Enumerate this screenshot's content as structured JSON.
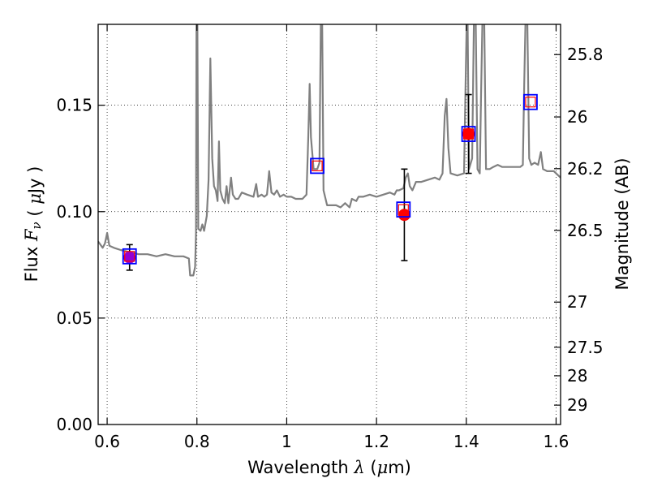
{
  "chart_data": {
    "type": "line",
    "xlabel": "Wavelength  λ (μm)",
    "ylabel": "Flux  Fν ( μJy )",
    "ylabel_right": "Magnitude (AB)",
    "xlim": [
      0.58,
      1.61
    ],
    "ylim": [
      0.0,
      0.188
    ],
    "grid": true,
    "x_ticks": [
      0.6,
      0.8,
      1.0,
      1.2,
      1.4,
      1.6
    ],
    "x_tick_labels": [
      "0.6",
      "0.8",
      "1",
      "1.2",
      "1.4",
      "1.6"
    ],
    "y_ticks": [
      0.0,
      0.05,
      0.1,
      0.15
    ],
    "y_tick_labels": [
      "0.00",
      "0.05",
      "0.10",
      "0.15"
    ],
    "right_ticks": [
      {
        "label": "25.8",
        "flux": 0.1738
      },
      {
        "label": "26",
        "flux": 0.1445
      },
      {
        "label": "26.2",
        "flux": 0.1202
      },
      {
        "label": "26.5",
        "flux": 0.0912
      },
      {
        "label": "27",
        "flux": 0.0575
      },
      {
        "label": "27.5",
        "flux": 0.0363
      },
      {
        "label": "28",
        "flux": 0.0229
      },
      {
        "label": "29",
        "flux": 0.0091
      }
    ],
    "spectrum": {
      "color": "#808080",
      "points": [
        [
          0.58,
          0.086
        ],
        [
          0.59,
          0.083
        ],
        [
          0.595,
          0.085
        ],
        [
          0.6,
          0.09
        ],
        [
          0.605,
          0.084
        ],
        [
          0.615,
          0.083
        ],
        [
          0.63,
          0.082
        ],
        [
          0.65,
          0.081
        ],
        [
          0.67,
          0.08
        ],
        [
          0.69,
          0.08
        ],
        [
          0.71,
          0.079
        ],
        [
          0.73,
          0.08
        ],
        [
          0.75,
          0.079
        ],
        [
          0.77,
          0.079
        ],
        [
          0.782,
          0.078
        ],
        [
          0.785,
          0.07
        ],
        [
          0.792,
          0.07
        ],
        [
          0.796,
          0.074
        ],
        [
          0.798,
          0.09
        ],
        [
          0.799,
          0.19
        ],
        [
          0.801,
          0.19
        ],
        [
          0.803,
          0.092
        ],
        [
          0.808,
          0.091
        ],
        [
          0.812,
          0.094
        ],
        [
          0.816,
          0.091
        ],
        [
          0.822,
          0.098
        ],
        [
          0.826,
          0.115
        ],
        [
          0.83,
          0.172
        ],
        [
          0.834,
          0.125
        ],
        [
          0.838,
          0.112
        ],
        [
          0.842,
          0.11
        ],
        [
          0.846,
          0.105
        ],
        [
          0.849,
          0.133
        ],
        [
          0.852,
          0.11
        ],
        [
          0.857,
          0.106
        ],
        [
          0.862,
          0.104
        ],
        [
          0.866,
          0.112
        ],
        [
          0.87,
          0.104
        ],
        [
          0.876,
          0.116
        ],
        [
          0.88,
          0.108
        ],
        [
          0.886,
          0.106
        ],
        [
          0.892,
          0.106
        ],
        [
          0.9,
          0.109
        ],
        [
          0.912,
          0.108
        ],
        [
          0.926,
          0.107
        ],
        [
          0.932,
          0.113
        ],
        [
          0.936,
          0.107
        ],
        [
          0.944,
          0.108
        ],
        [
          0.95,
          0.107
        ],
        [
          0.956,
          0.108
        ],
        [
          0.961,
          0.119
        ],
        [
          0.966,
          0.109
        ],
        [
          0.972,
          0.108
        ],
        [
          0.978,
          0.11
        ],
        [
          0.985,
          0.107
        ],
        [
          0.993,
          0.108
        ],
        [
          1.0,
          0.107
        ],
        [
          1.01,
          0.107
        ],
        [
          1.02,
          0.106
        ],
        [
          1.035,
          0.106
        ],
        [
          1.044,
          0.108
        ],
        [
          1.048,
          0.135
        ],
        [
          1.051,
          0.16
        ],
        [
          1.054,
          0.135
        ],
        [
          1.06,
          0.12
        ],
        [
          1.068,
          0.12
        ],
        [
          1.073,
          0.123
        ],
        [
          1.076,
          0.19
        ],
        [
          1.079,
          0.19
        ],
        [
          1.082,
          0.11
        ],
        [
          1.09,
          0.103
        ],
        [
          1.1,
          0.103
        ],
        [
          1.11,
          0.103
        ],
        [
          1.12,
          0.102
        ],
        [
          1.13,
          0.104
        ],
        [
          1.14,
          0.102
        ],
        [
          1.145,
          0.106
        ],
        [
          1.155,
          0.105
        ],
        [
          1.16,
          0.107
        ],
        [
          1.17,
          0.107
        ],
        [
          1.185,
          0.108
        ],
        [
          1.2,
          0.107
        ],
        [
          1.215,
          0.108
        ],
        [
          1.23,
          0.109
        ],
        [
          1.24,
          0.108
        ],
        [
          1.245,
          0.11
        ],
        [
          1.25,
          0.11
        ],
        [
          1.26,
          0.111
        ],
        [
          1.265,
          0.116
        ],
        [
          1.27,
          0.118
        ],
        [
          1.274,
          0.112
        ],
        [
          1.28,
          0.11
        ],
        [
          1.288,
          0.114
        ],
        [
          1.3,
          0.114
        ],
        [
          1.315,
          0.115
        ],
        [
          1.33,
          0.116
        ],
        [
          1.34,
          0.115
        ],
        [
          1.347,
          0.118
        ],
        [
          1.352,
          0.145
        ],
        [
          1.356,
          0.153
        ],
        [
          1.36,
          0.13
        ],
        [
          1.365,
          0.118
        ],
        [
          1.38,
          0.117
        ],
        [
          1.395,
          0.118
        ],
        [
          1.401,
          0.19
        ],
        [
          1.403,
          0.19
        ],
        [
          1.406,
          0.12
        ],
        [
          1.413,
          0.125
        ],
        [
          1.417,
          0.19
        ],
        [
          1.421,
          0.19
        ],
        [
          1.425,
          0.12
        ],
        [
          1.43,
          0.118
        ],
        [
          1.433,
          0.155
        ],
        [
          1.436,
          0.19
        ],
        [
          1.44,
          0.19
        ],
        [
          1.444,
          0.12
        ],
        [
          1.452,
          0.12
        ],
        [
          1.46,
          0.121
        ],
        [
          1.47,
          0.122
        ],
        [
          1.48,
          0.121
        ],
        [
          1.49,
          0.121
        ],
        [
          1.5,
          0.121
        ],
        [
          1.51,
          0.121
        ],
        [
          1.52,
          0.121
        ],
        [
          1.526,
          0.122
        ],
        [
          1.529,
          0.16
        ],
        [
          1.532,
          0.19
        ],
        [
          1.536,
          0.19
        ],
        [
          1.54,
          0.125
        ],
        [
          1.545,
          0.122
        ],
        [
          1.552,
          0.123
        ],
        [
          1.56,
          0.122
        ],
        [
          1.566,
          0.128
        ],
        [
          1.571,
          0.12
        ],
        [
          1.58,
          0.119
        ],
        [
          1.595,
          0.119
        ],
        [
          1.605,
          0.117
        ],
        [
          1.61,
          0.116
        ]
      ]
    },
    "model_points": {
      "marker": "open-square",
      "outer_color": "#0000ff",
      "inner_color": "#ff0000",
      "points": [
        {
          "x": 0.65,
          "y": 0.079
        },
        {
          "x": 1.068,
          "y": 0.1215
        },
        {
          "x": 1.26,
          "y": 0.101
        },
        {
          "x": 1.405,
          "y": 0.1365
        },
        {
          "x": 1.543,
          "y": 0.1515
        }
      ]
    },
    "observed_points": {
      "marker": "filled-circle",
      "points": [
        {
          "x": 0.65,
          "y": 0.0785,
          "err": 0.006,
          "color": "#9400d3"
        },
        {
          "x": 1.262,
          "y": 0.0985,
          "err": 0.0215,
          "color": "#ff0000"
        },
        {
          "x": 1.405,
          "y": 0.1365,
          "err": 0.0185,
          "color": "#ff0000"
        }
      ]
    }
  }
}
